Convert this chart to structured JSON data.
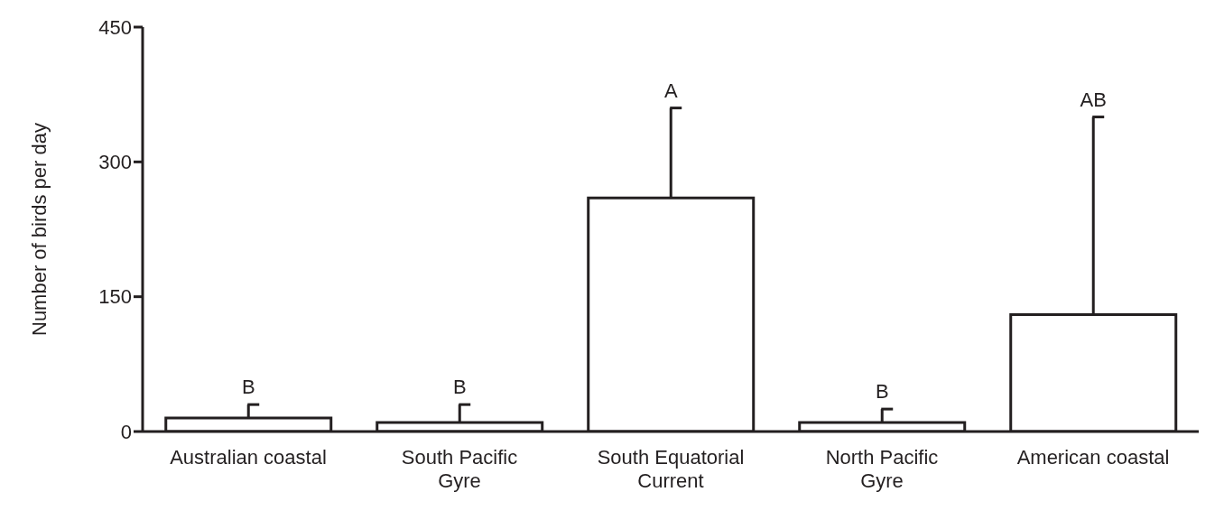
{
  "chart_data": {
    "type": "bar",
    "ylabel": "Number of birds per day",
    "categories": [
      "Australian coastal",
      "South Pacific\nGyre",
      "South Equatorial\nCurrent",
      "North Pacific\nGyre",
      "American coastal"
    ],
    "values": [
      15,
      10,
      260,
      10,
      130
    ],
    "errors": [
      15,
      20,
      100,
      15,
      220
    ],
    "color": "#ffffff",
    "ylim": [
      0,
      450
    ],
    "yticks": [
      0,
      150,
      300,
      450
    ],
    "grid": false,
    "annotations": [
      {
        "text": "B",
        "x": "Australian coastal",
        "y": 30
      },
      {
        "text": "B",
        "x": "South Pacific\nGyre",
        "y": 30
      },
      {
        "text": "A",
        "x": "South Equatorial\nCurrent",
        "y": 360
      },
      {
        "text": "B",
        "x": "North Pacific\nGyre",
        "y": 25
      },
      {
        "text": "AB",
        "x": "American coastal",
        "y": 350
      }
    ]
  }
}
